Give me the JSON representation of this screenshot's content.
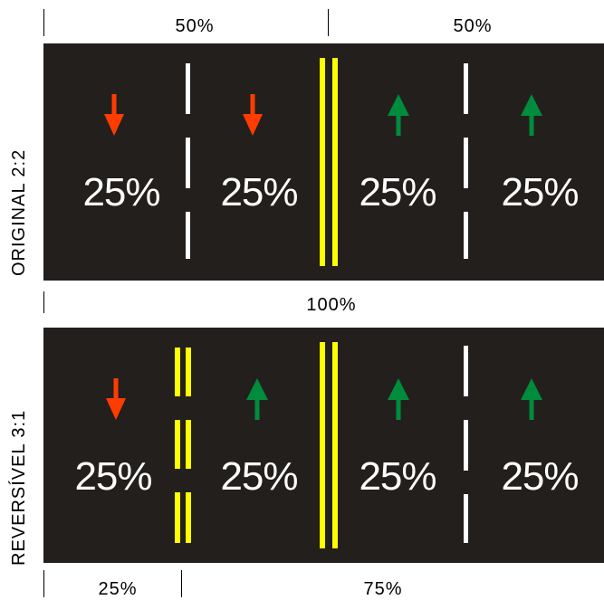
{
  "top_dims": [
    {
      "label": "50%"
    },
    {
      "label": "50%"
    }
  ],
  "middle_dim": {
    "label": "100%"
  },
  "bottom_dims": [
    {
      "label": "25%"
    },
    {
      "label": "75%"
    }
  ],
  "original": {
    "label": "ORIGINAL 2:2",
    "lanes": [
      {
        "pct": "25%",
        "direction": "down",
        "color": "#ff3c00"
      },
      {
        "pct": "25%",
        "direction": "down",
        "color": "#ff3c00"
      },
      {
        "pct": "25%",
        "direction": "up",
        "color": "#008c3c"
      },
      {
        "pct": "25%",
        "direction": "up",
        "color": "#008c3c"
      }
    ]
  },
  "reversible": {
    "label": "REVERSÍVEL 3:1",
    "lanes": [
      {
        "pct": "25%",
        "direction": "down",
        "color": "#ff3c00"
      },
      {
        "pct": "25%",
        "direction": "up",
        "color": "#008c3c"
      },
      {
        "pct": "25%",
        "direction": "up",
        "color": "#008c3c"
      },
      {
        "pct": "25%",
        "direction": "up",
        "color": "#008c3c"
      }
    ]
  },
  "colors": {
    "road": "#231f1c",
    "lane_line": "#ffffff",
    "center_line": "#ffff00"
  }
}
